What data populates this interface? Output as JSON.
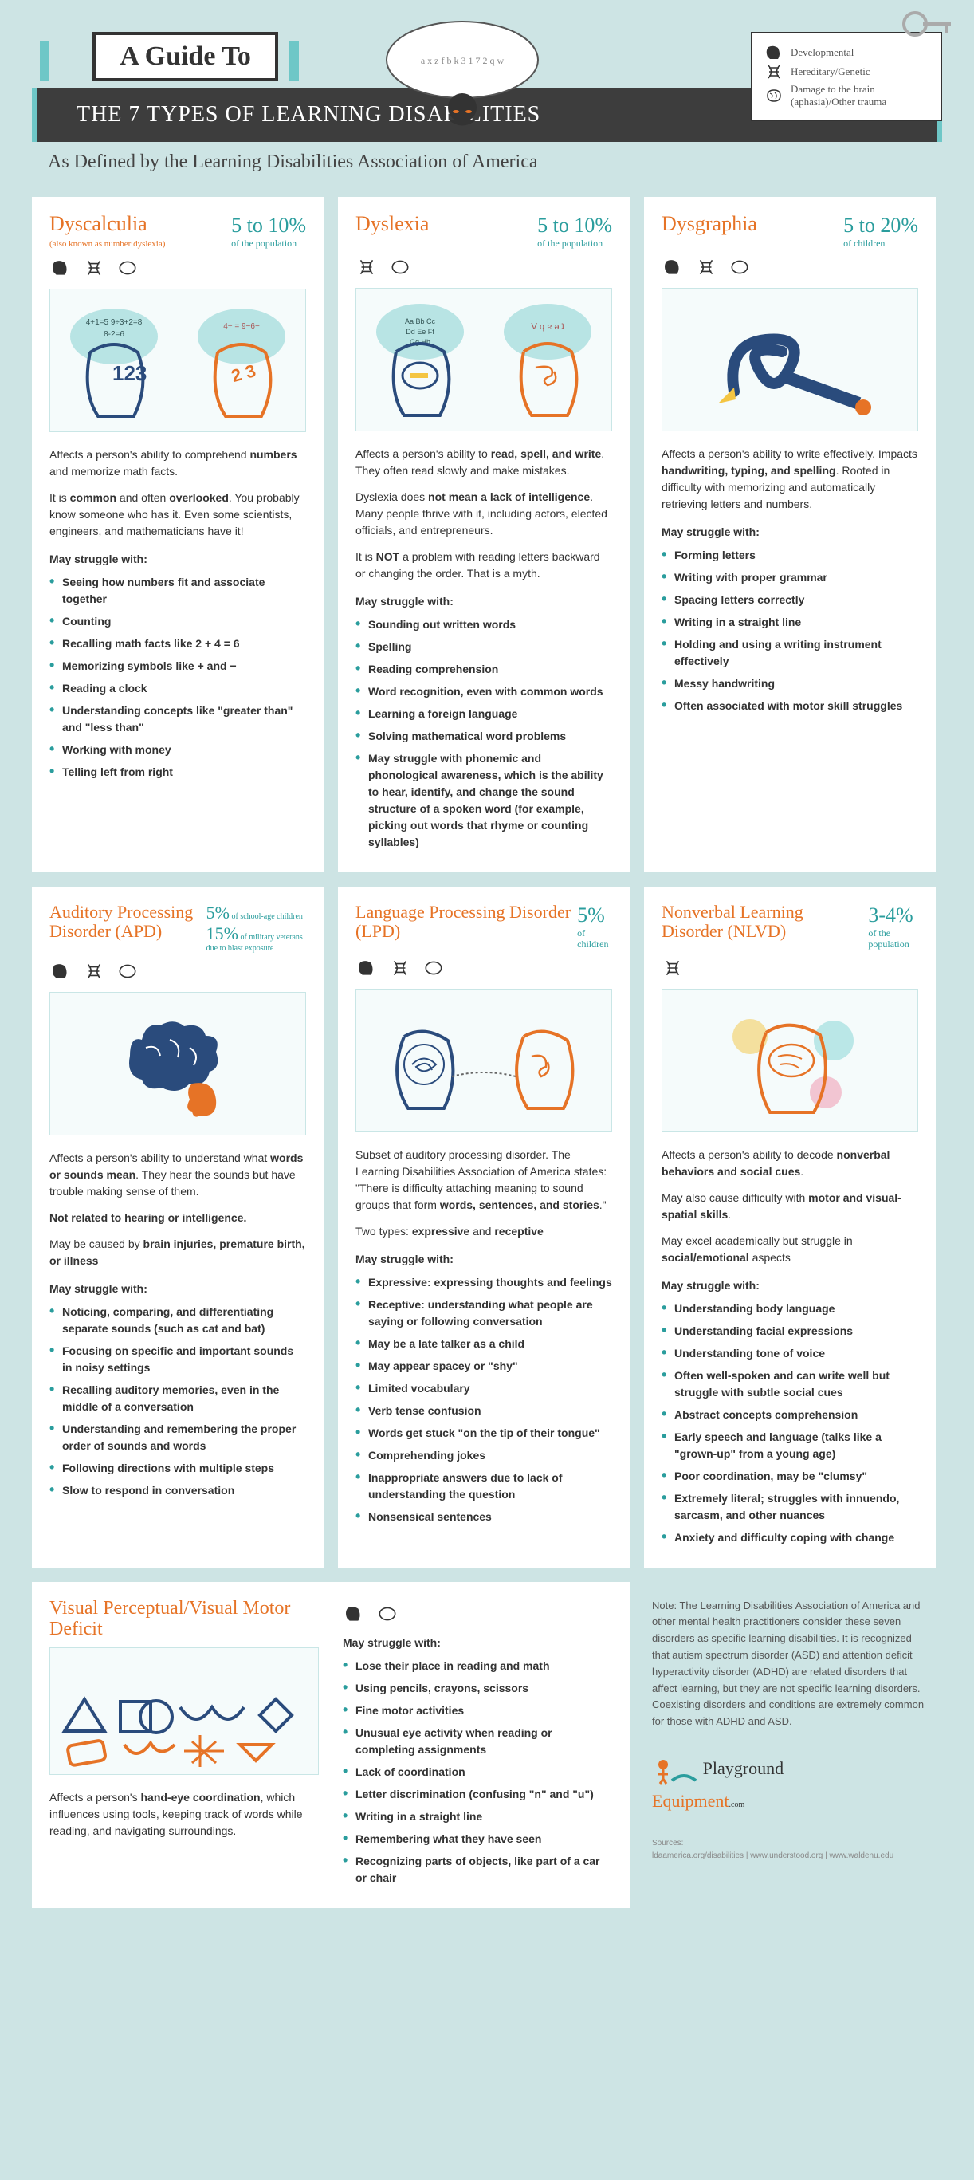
{
  "header": {
    "guide_to": "A Guide To",
    "banner": "THE 7 TYPES OF LEARNING DISABILITIES",
    "subtitle": "As Defined by the Learning Disabilities Association of America"
  },
  "legend": {
    "developmental": "Developmental",
    "hereditary": "Hereditary/Genetic",
    "damage": "Damage to the brain (aphasia)/Other trauma"
  },
  "cards": {
    "dyscalculia": {
      "title": "Dyscalculia",
      "sub": "(also known as number dyslexia)",
      "stat_big": "5 to 10%",
      "stat_small": "of the population",
      "p1": "Affects a person's ability to comprehend <b>numbers</b> and memorize math facts.",
      "p2": "It is <b>common</b> and often <b>overlooked</b>. You probably know someone who has it. Even some scientists, engineers, and mathematicians have it!",
      "struggle": "May struggle with:",
      "bullets": [
        "Seeing how numbers fit and associate together",
        "Counting",
        "Recalling math facts like 2 + 4 = 6",
        "Memorizing symbols like + and −",
        "Reading a clock",
        "Understanding concepts like \"greater than\" and \"less than\"",
        "Working with money",
        "Telling left from right"
      ]
    },
    "dyslexia": {
      "title": "Dyslexia",
      "stat_big": "5 to 10%",
      "stat_small": "of the population",
      "p1": "Affects a person's ability to <b>read, spell, and write</b>. They often read slowly and make mistakes.",
      "p2": "Dyslexia does <b>not mean a lack of intelligence</b>. Many people thrive with it, including actors, elected officials, and entrepreneurs.",
      "p3": "It is <b>NOT</b> a problem with reading letters backward or changing the order. That is a myth.",
      "struggle": "May struggle with:",
      "bullets": [
        "Sounding out written words",
        "Spelling",
        "Reading comprehension",
        "Word recognition, even with common words",
        "Learning a foreign language",
        "Solving mathematical word problems",
        "May struggle with phonemic and phonological awareness, which is the ability to hear, identify, and change the sound structure of a spoken word (for example, picking out words that rhyme or counting syllables)"
      ]
    },
    "dysgraphia": {
      "title": "Dysgraphia",
      "stat_big": "5 to 20%",
      "stat_small": "of children",
      "p1": "Affects a person's ability to write effectively. Impacts <b>handwriting, typing, and spelling</b>. Rooted in difficulty with memorizing and automatically retrieving letters and numbers.",
      "struggle": "May struggle with:",
      "bullets": [
        "Forming letters",
        "Writing with proper grammar",
        "Spacing letters correctly",
        "Writing in a straight line",
        "Holding and using a writing instrument effectively",
        "Messy handwriting",
        "Often associated with motor skill struggles"
      ]
    },
    "apd": {
      "title": "Auditory Processing Disorder (APD)",
      "stat1_big": "5%",
      "stat1_small": "of school-age children",
      "stat2_big": "15%",
      "stat2_small": "of military veterans due to blast exposure",
      "p1": "Affects a person's ability to understand what <b>words or sounds mean</b>. They hear the sounds but have trouble making sense of them.",
      "p2": "<b>Not related to hearing or intelligence.</b>",
      "p3": "May be caused by <b>brain injuries, premature birth, or illness</b>",
      "struggle": "May struggle with:",
      "bullets": [
        "Noticing, comparing, and differentiating separate sounds (such as cat and bat)",
        "Focusing on specific and important sounds in noisy settings",
        "Recalling auditory memories, even in the middle of a conversation",
        "Understanding and remembering the proper order of sounds and words",
        "Following directions with multiple steps",
        "Slow to respond in conversation"
      ]
    },
    "lpd": {
      "title": "Language Processing Disorder (LPD)",
      "stat_big": "5%",
      "stat_small": "of children",
      "p1": "Subset of auditory processing disorder. The Learning Disabilities Association of America states: \"There is difficulty attaching meaning to sound groups that form <b>words, sentences, and stories</b>.\"",
      "p2": "Two types: <b>expressive</b> and <b>receptive</b>",
      "struggle": "May struggle with:",
      "bullets": [
        "Expressive: expressing thoughts and feelings",
        "Receptive: understanding what people are saying or following conversation",
        "May be a late talker as a child",
        "May appear spacey or \"shy\"",
        "Limited vocabulary",
        "Verb tense confusion",
        "Words get stuck \"on the tip of their tongue\"",
        "Comprehending jokes",
        "Inappropriate answers due to lack of understanding the question",
        "Nonsensical sentences"
      ]
    },
    "nlvd": {
      "title": "Nonverbal Learning Disorder (NLVD)",
      "stat_big": "3-4%",
      "stat_small": "of the population",
      "p1": "Affects a person's ability to decode <b>nonverbal behaviors and social cues</b>.",
      "p2": "May also cause difficulty with <b>motor and visual-spatial skills</b>.",
      "p3": "May excel academically but struggle in <b>social/emotional</b> aspects",
      "struggle": "May struggle with:",
      "bullets": [
        "Understanding body language",
        "Understanding facial expressions",
        "Understanding tone of voice",
        "Often well-spoken and can write well but struggle with subtle social cues",
        "Abstract concepts comprehension",
        "Early speech and language (talks like a \"grown-up\" from a young age)",
        "Poor coordination, may be \"clumsy\"",
        "Extremely literal; struggles with innuendo, sarcasm, and other nuances",
        "Anxiety and difficulty coping with change"
      ]
    },
    "visual": {
      "title": "Visual Perceptual/Visual Motor Deficit",
      "p1": "Affects a person's <b>hand-eye coordination</b>, which influences using tools, keeping track of words while reading, and navigating surroundings.",
      "struggle": "May struggle with:",
      "bullets": [
        "Lose their place in reading and math",
        "Using pencils, crayons, scissors",
        "Fine motor activities",
        "Unusual eye activity when reading or completing assignments",
        "Lack of coordination",
        "Letter discrimination (confusing \"n\" and \"u\")",
        "Writing in a straight line",
        "Remembering what they have seen",
        "Recognizing parts of objects, like part of a car or chair"
      ]
    }
  },
  "note": "Note: The Learning Disabilities Association of America and other mental health practitioners consider these seven disorders as specific learning disabilities. It is recognized that autism spectrum disorder (ASD) and attention deficit hyperactivity disorder (ADHD) are related disorders that affect learning, but they are not specific learning disorders. Coexisting disorders and conditions are extremely common for those with ADHD and ASD.",
  "logo": {
    "a": "Playground",
    "b": "Equipment",
    "com": ".com"
  },
  "sources": {
    "label": "Sources:",
    "text": "ldaamerica.org/disabilities | www.understood.org | www.waldenu.edu"
  },
  "colors": {
    "orange": "#e67326",
    "teal": "#2a9d9d",
    "navy": "#2a4b7c"
  }
}
